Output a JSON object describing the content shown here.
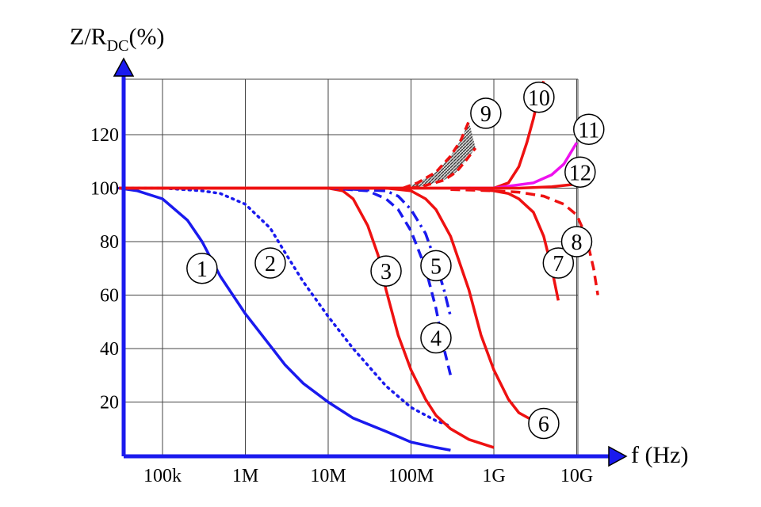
{
  "chart_data": {
    "type": "line",
    "ylabel": {
      "main": "Z/R",
      "sub": "DC",
      "suffix": "(%)"
    },
    "xlabel": "f (Hz)",
    "x_scale": "log",
    "x_range": [
      30000,
      10000000000
    ],
    "ylim": [
      0,
      140
    ],
    "x_ticks": [
      {
        "value": 100000,
        "label": "100k"
      },
      {
        "value": 1000000,
        "label": "1M"
      },
      {
        "value": 10000000,
        "label": "10M"
      },
      {
        "value": 100000000,
        "label": "100M"
      },
      {
        "value": 1000000000,
        "label": "1G"
      },
      {
        "value": 10000000000,
        "label": "10G"
      }
    ],
    "y_ticks": [
      20,
      40,
      60,
      80,
      100,
      120
    ],
    "grid": true,
    "legend": "none",
    "series": [
      {
        "name": "1",
        "color": "#1a1aee",
        "style": "solid",
        "label_at": [
          300000,
          70
        ],
        "points": [
          [
            30000,
            100
          ],
          [
            50000,
            99
          ],
          [
            100000,
            96
          ],
          [
            200000,
            88
          ],
          [
            300000,
            80
          ],
          [
            500000,
            67
          ],
          [
            1000000,
            53
          ],
          [
            2000000,
            41
          ],
          [
            3000000,
            34
          ],
          [
            5000000,
            27
          ],
          [
            10000000,
            20
          ],
          [
            20000000,
            14
          ],
          [
            50000000,
            9
          ],
          [
            100000000,
            5
          ],
          [
            200000000,
            3
          ],
          [
            300000000,
            2
          ]
        ]
      },
      {
        "name": "2",
        "color": "#1a1aee",
        "style": "dotted",
        "label_at": [
          2000000,
          72
        ],
        "points": [
          [
            30000,
            100
          ],
          [
            100000,
            100
          ],
          [
            300000,
            99
          ],
          [
            500000,
            98
          ],
          [
            1000000,
            94
          ],
          [
            2000000,
            85
          ],
          [
            3000000,
            76
          ],
          [
            5000000,
            65
          ],
          [
            10000000,
            52
          ],
          [
            20000000,
            40
          ],
          [
            50000000,
            26
          ],
          [
            100000000,
            18
          ],
          [
            200000000,
            13
          ],
          [
            300000000,
            11
          ]
        ]
      },
      {
        "name": "3",
        "color": "#ee1111",
        "style": "solid",
        "label_at": [
          50000000,
          69
        ],
        "points": [
          [
            30000,
            100
          ],
          [
            10000000,
            100
          ],
          [
            15000000,
            99
          ],
          [
            20000000,
            96
          ],
          [
            30000000,
            86
          ],
          [
            40000000,
            75
          ],
          [
            50000000,
            62
          ],
          [
            70000000,
            45
          ],
          [
            100000000,
            32
          ],
          [
            150000000,
            21
          ],
          [
            200000000,
            15
          ],
          [
            300000000,
            10
          ],
          [
            500000000,
            6
          ],
          [
            1000000000,
            3
          ]
        ]
      },
      {
        "name": "4",
        "color": "#1a1aee",
        "style": "dashed",
        "label_at": [
          200000000,
          44
        ],
        "points": [
          [
            10000000,
            100
          ],
          [
            30000000,
            99
          ],
          [
            50000000,
            96
          ],
          [
            70000000,
            92
          ],
          [
            100000000,
            84
          ],
          [
            150000000,
            70
          ],
          [
            200000000,
            55
          ],
          [
            250000000,
            40
          ],
          [
            300000000,
            30
          ]
        ]
      },
      {
        "name": "5",
        "color": "#1a1aee",
        "style": "dashdot",
        "label_at": [
          200000000,
          71
        ],
        "points": [
          [
            10000000,
            100
          ],
          [
            50000000,
            99
          ],
          [
            70000000,
            97
          ],
          [
            100000000,
            92
          ],
          [
            150000000,
            83
          ],
          [
            200000000,
            72
          ],
          [
            250000000,
            62
          ],
          [
            300000000,
            52
          ]
        ]
      },
      {
        "name": "6",
        "color": "#ee1111",
        "style": "solid",
        "label_at": [
          4000000000,
          12
        ],
        "points": [
          [
            10000000,
            100
          ],
          [
            50000000,
            100
          ],
          [
            100000000,
            99
          ],
          [
            150000000,
            96
          ],
          [
            200000000,
            92
          ],
          [
            300000000,
            82
          ],
          [
            500000000,
            62
          ],
          [
            700000000,
            45
          ],
          [
            1000000000,
            32
          ],
          [
            1500000000,
            21
          ],
          [
            2000000000,
            16
          ],
          [
            3000000000,
            13
          ]
        ]
      },
      {
        "name": "7",
        "color": "#ee1111",
        "style": "solid",
        "label_at": [
          6000000000,
          72
        ],
        "points": [
          [
            500000000,
            100
          ],
          [
            1000000000,
            99
          ],
          [
            1500000000,
            98
          ],
          [
            2000000000,
            96
          ],
          [
            3000000000,
            91
          ],
          [
            4000000000,
            82
          ],
          [
            5000000000,
            70
          ],
          [
            6000000000,
            58
          ]
        ]
      },
      {
        "name": "8",
        "color": "#ee1111",
        "style": "dashed",
        "label_at": [
          10000000000,
          80
        ],
        "points": [
          [
            300000000,
            99.5
          ],
          [
            1000000000,
            99
          ],
          [
            2000000000,
            98.5
          ],
          [
            4000000000,
            97
          ],
          [
            7000000000,
            94
          ],
          [
            10000000000,
            90
          ],
          [
            13000000000,
            82
          ],
          [
            16000000000,
            70
          ],
          [
            18000000000,
            60
          ]
        ]
      },
      {
        "name": "9",
        "color": "#ee1111",
        "style": "dashed-band",
        "label_at": [
          800000000,
          128
        ],
        "points": [
          [
            80000000,
            100
          ],
          [
            120000000,
            102
          ],
          [
            200000000,
            106
          ],
          [
            300000000,
            112
          ],
          [
            400000000,
            118
          ],
          [
            500000000,
            125
          ]
        ],
        "points_lower": [
          [
            100000000,
            100
          ],
          [
            150000000,
            101
          ],
          [
            250000000,
            103
          ],
          [
            350000000,
            106
          ],
          [
            450000000,
            110
          ],
          [
            600000000,
            115
          ]
        ]
      },
      {
        "name": "10",
        "color": "#ee1111",
        "style": "solid",
        "label_at": [
          3500000000,
          134
        ],
        "points": [
          [
            30000,
            100
          ],
          [
            1000000000,
            100
          ],
          [
            1500000000,
            102
          ],
          [
            2000000000,
            108
          ],
          [
            2500000000,
            117
          ],
          [
            3000000000,
            126
          ],
          [
            3500000000,
            135
          ],
          [
            4000000000,
            140
          ]
        ]
      },
      {
        "name": "11",
        "color": "#ee11ee",
        "style": "solid",
        "label_at": [
          14000000000,
          122
        ],
        "points": [
          [
            300000000,
            100
          ],
          [
            1000000000,
            100
          ],
          [
            3000000000,
            102
          ],
          [
            5000000000,
            105
          ],
          [
            7000000000,
            109
          ],
          [
            10000000000,
            117
          ]
        ]
      },
      {
        "name": "12",
        "color": "#ee1111",
        "style": "solid",
        "label_at": [
          11000000000,
          106
        ],
        "points": [
          [
            30000,
            100
          ],
          [
            2000000000,
            100
          ],
          [
            5000000000,
            100.5
          ],
          [
            10000000000,
            101.5
          ],
          [
            12000000000,
            102
          ]
        ]
      }
    ]
  }
}
